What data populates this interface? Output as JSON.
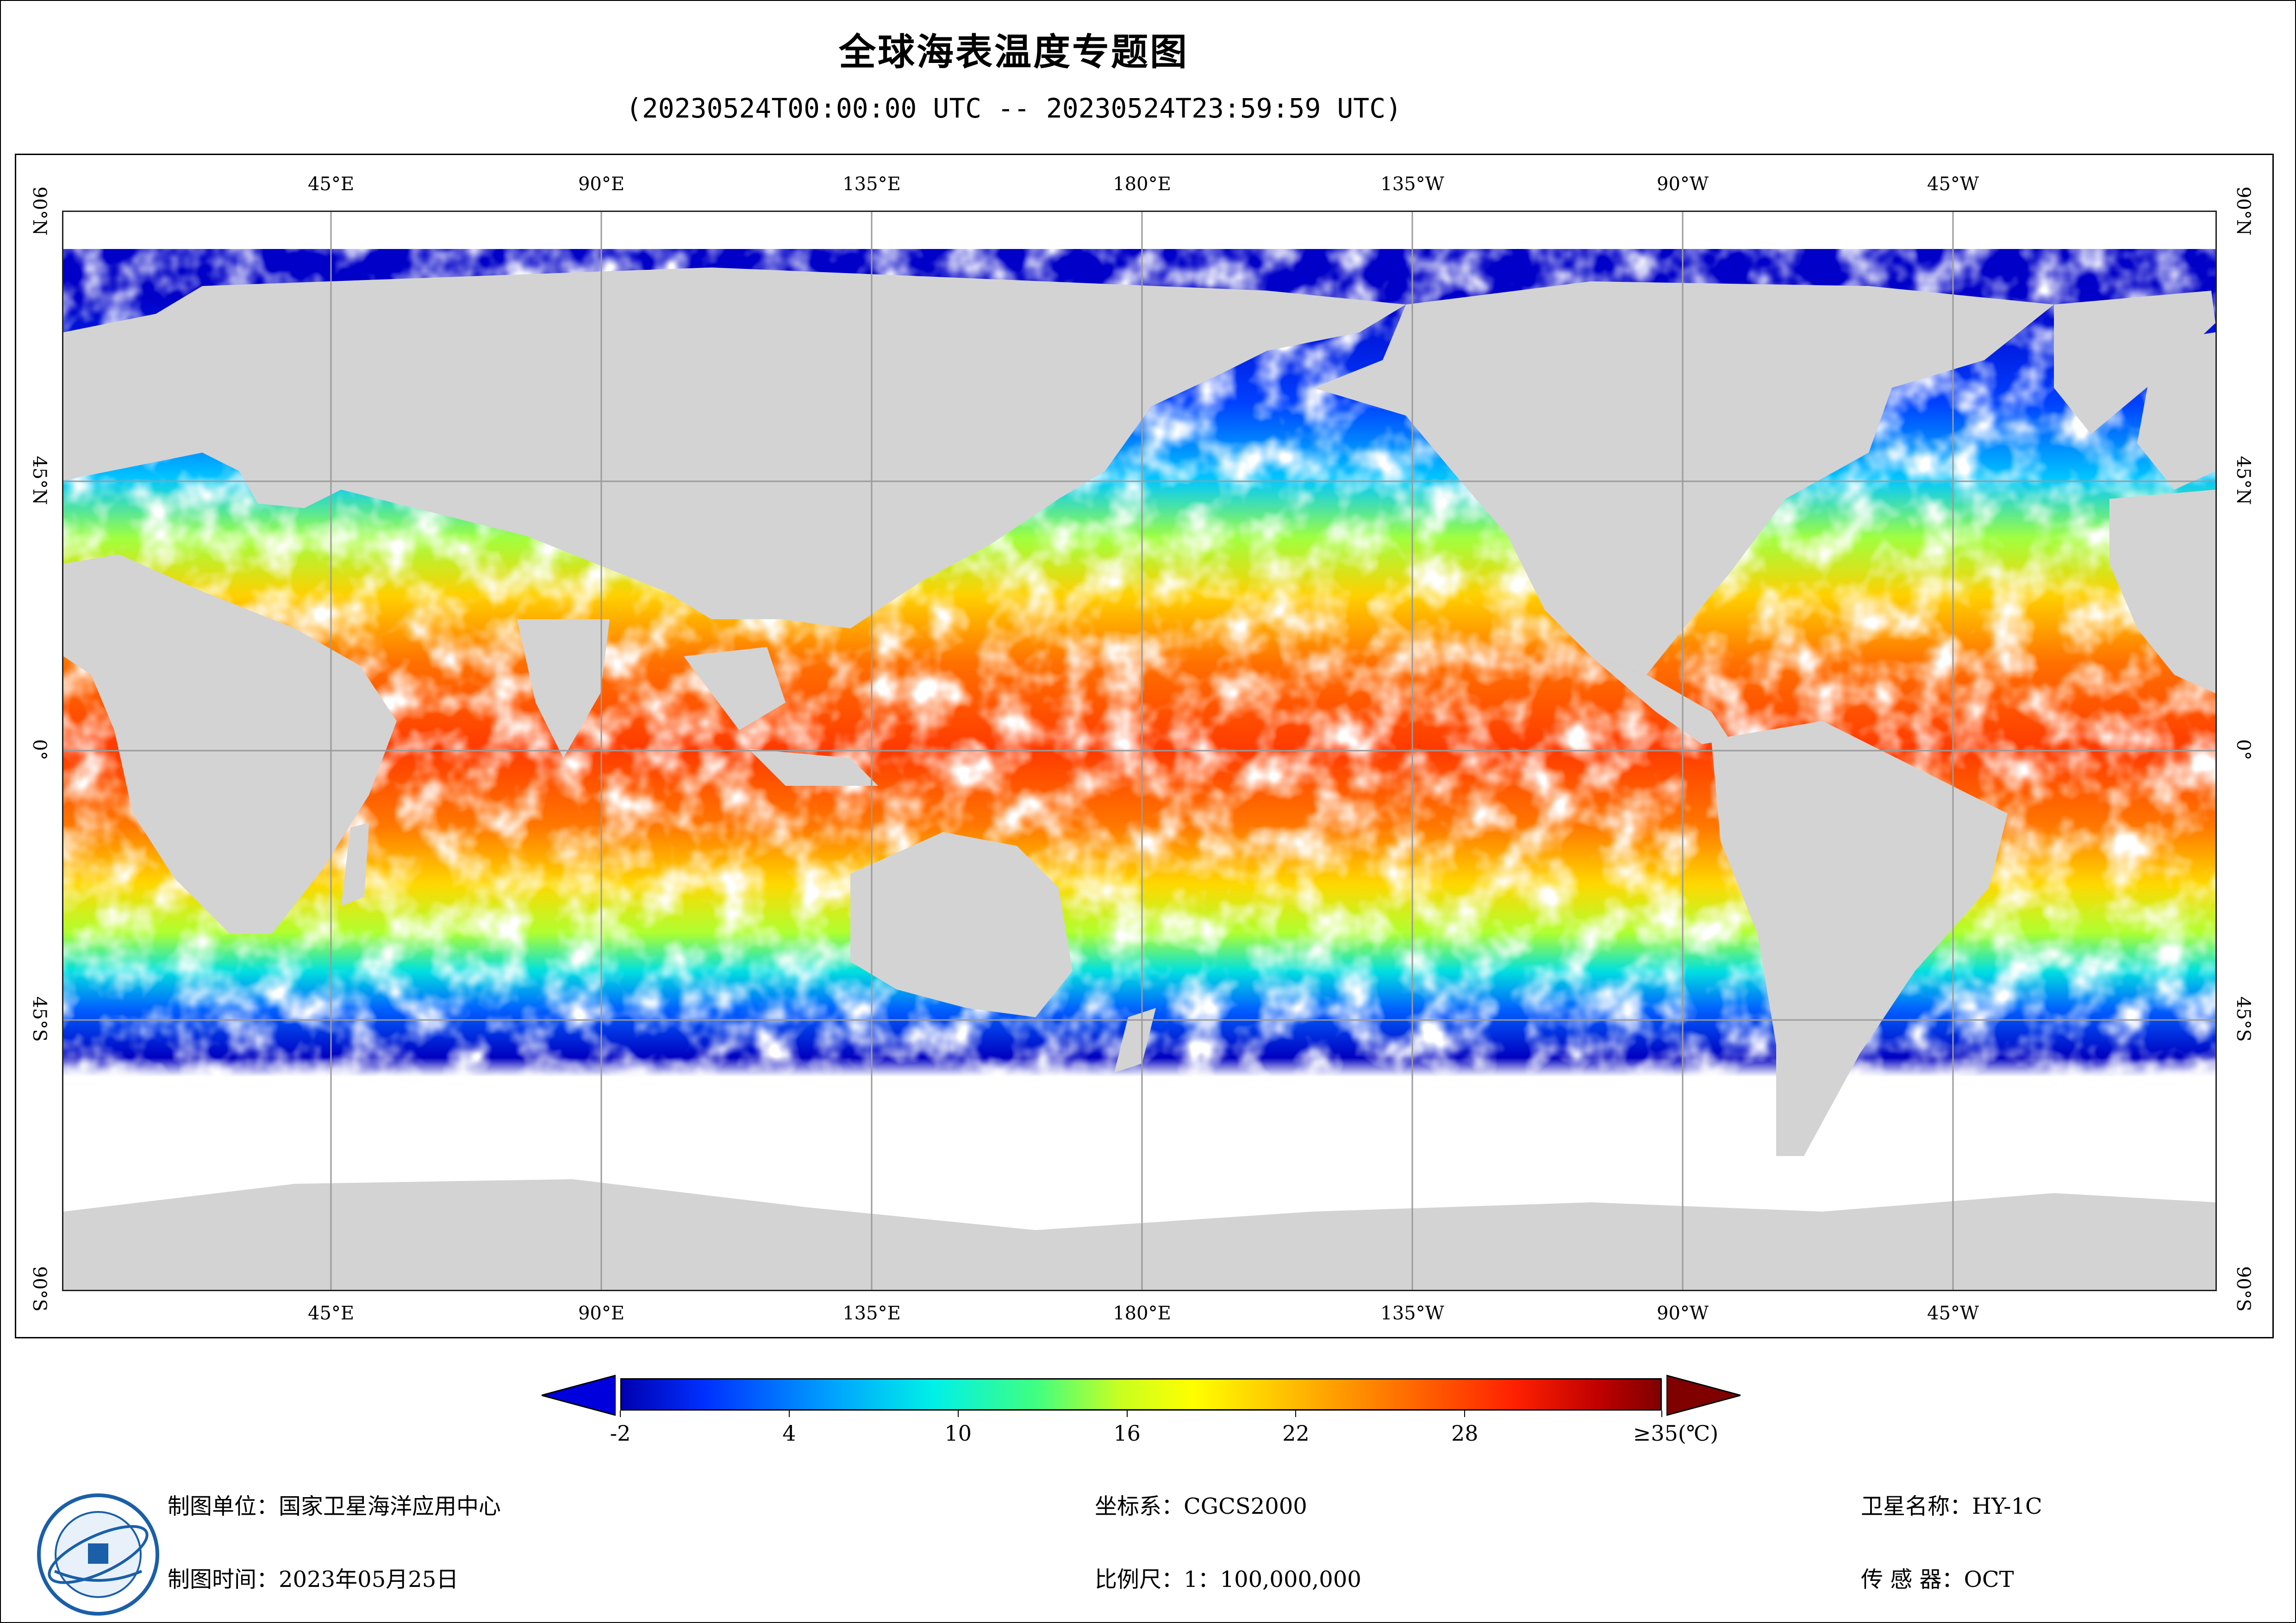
{
  "title": "全球海表温度专题图",
  "subtitle": "(20230524T00:00:00 UTC -- 20230524T23:59:59 UTC)",
  "map": {
    "projection": "equirectangular, centered on 180°E",
    "longitude_labels": [
      "45°E",
      "90°E",
      "135°E",
      "180°E",
      "135°W",
      "90°W",
      "45°W"
    ],
    "latitude_labels": [
      "90°N",
      "45°N",
      "0°",
      "45°S",
      "90°S"
    ],
    "land_color": "#d3d3d3",
    "no_data_color": "#ffffff"
  },
  "colorbar": {
    "tick_labels": [
      "-2",
      "4",
      "10",
      "16",
      "22",
      "28",
      "≥35(℃)"
    ],
    "min": -2,
    "max": 35,
    "unit": "℃",
    "colors": [
      "#0000b0",
      "#0030ff",
      "#00a0ff",
      "#00f0e8",
      "#40ff80",
      "#c8ff20",
      "#ffff00",
      "#ffc000",
      "#ff7000",
      "#ff2000",
      "#c00000",
      "#800000"
    ]
  },
  "footer": {
    "unit_label": "制图单位：国家卫星海洋应用中心",
    "time_label": "制图时间：2023年05月25日",
    "crs_label": "坐标系：CGCS2000",
    "scale_label": "比例尺：1：100,000,000",
    "satellite_label": "卫星名称：HY-1C",
    "sensor_label": "传 感 器：OCT"
  },
  "logo": {
    "icon": "nsoas-logo-icon"
  }
}
